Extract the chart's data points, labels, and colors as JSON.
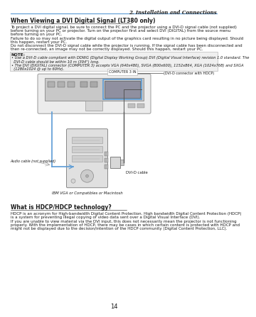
{
  "page_num": "14",
  "bg_color": "#ffffff",
  "header_text": "2. Installation and Connections",
  "section1_title": "When Viewing a DVI Digital Signal (LT380 only)",
  "section1_body": "To project a DVI digital signal, be sure to connect the PC and the projector using a DVI-D signal cable (not supplied)\nbefore turning on your PC or projector. Turn on the projector first and select DVI (DIGITAL) from the source menu\nbefore turning on your PC.\nFailure to do so may not activate the digital output of the graphics card resulting in no picture being displayed. Should\nthis happen, restart your PC.\nDo not disconnect the DVI-D signal cable while the projector is running. If the signal cable has been disconnected and\nthen re-connected, an image may not be correctly displayed. Should this happen, restart your PC.",
  "note_label": "NOTE:",
  "note_lines": [
    "• Use a DVI-D cable compliant with DDWG (Digital Display Working Group) DVI (Digital Visual Interface) revision 1.0 standard. The",
    "  DVI-D cable should be within 10 m (394\") long.",
    "• The DVI (DIGITAL) connector (COMPUTER 3) accepts VGA (640x480), SVGA (800x600), 1152x864, XGA (1024x768) and SXGA",
    "  (1280x1024 @ up to 60Hz)."
  ],
  "diag_computer3_label": "COMPUTER 3 IN",
  "diag_dvi_label": "(DVI-D connector with HDCP)",
  "diag_audio_label": "Audio cable (not supplied)",
  "diag_dvicable_label": "DVI-D cable",
  "diag_caption": "IBM VGA or Compatibles or Macintosh",
  "section2_title": "What is HDCP/HDCP technology?",
  "section2_body": "HDCP is an acronym for High-bandwidth Digital Content Protection. High bandwidth Digital Content Protection (HDCP)\nis a system for preventing illegal copying of video data sent over a Digital Visual Interface (DVI).\nIf you are unable to view material via the DVI input, this does not necessarily mean the projector is not functioning\nproperly. With the implementation of HDCP, there may be cases in which certain content is protected with HDCP and\nmight not be displayed due to the decision/intention of the HDCP community (Digital Content Protection, LLC).",
  "text_color": "#1a1a1a",
  "blue_color": "#5b9bd5",
  "gray_light": "#e8e8e8",
  "gray_mid": "#c0c0c0",
  "gray_dark": "#888888",
  "note_bg": "#f0f0f0",
  "header_line_color": "#5b9bd5"
}
